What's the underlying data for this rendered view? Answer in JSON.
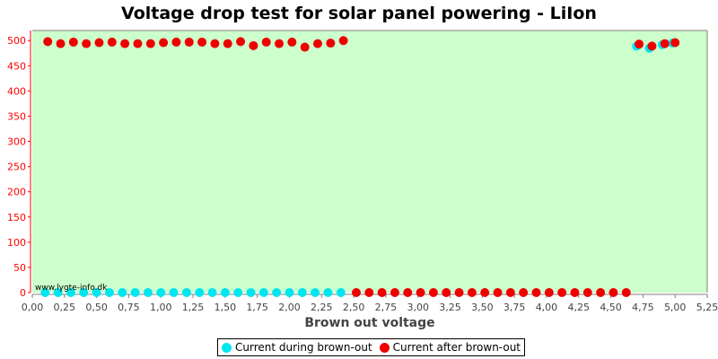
{
  "title": "Voltage drop test for solar panel powering -  LiIon",
  "watermark": "www.lygte-info.dk",
  "colors": {
    "plot_background": "#ccffcc",
    "axis": "#ff0000",
    "current_during": "#00e6f0",
    "current_after": "#ee0000"
  },
  "chart_data": {
    "type": "scatter",
    "title": "Voltage drop test for solar panel powering -  LiIon",
    "xlabel": "Brown out voltage",
    "ylabel": "",
    "xlim": [
      0,
      5.25
    ],
    "ylim": [
      0,
      520
    ],
    "x_ticks": [
      "0,00",
      "0,25",
      "0,50",
      "0,75",
      "1,00",
      "1,25",
      "1,50",
      "1,75",
      "2,00",
      "2,25",
      "2,50",
      "2,75",
      "3,00",
      "3,25",
      "3,50",
      "3,75",
      "4,00",
      "4,25",
      "4,50",
      "4,75",
      "5,00",
      "5,25"
    ],
    "y_ticks": [
      "0",
      "50",
      "100",
      "150",
      "200",
      "250",
      "300",
      "350",
      "400",
      "450",
      "500"
    ],
    "legend_position": "bottom-center",
    "grid": false,
    "series": [
      {
        "name": "Current during brown-out",
        "color": "#00e6f0",
        "points": [
          [
            0.1,
            0
          ],
          [
            0.2,
            0
          ],
          [
            0.3,
            0
          ],
          [
            0.4,
            0
          ],
          [
            0.5,
            0
          ],
          [
            0.6,
            0
          ],
          [
            0.7,
            0
          ],
          [
            0.8,
            0
          ],
          [
            0.9,
            0
          ],
          [
            1.0,
            0
          ],
          [
            1.1,
            0
          ],
          [
            1.2,
            0
          ],
          [
            1.3,
            0
          ],
          [
            1.4,
            0
          ],
          [
            1.5,
            0
          ],
          [
            1.6,
            0
          ],
          [
            1.7,
            0
          ],
          [
            1.8,
            0
          ],
          [
            1.9,
            0
          ],
          [
            2.0,
            0
          ],
          [
            2.1,
            0
          ],
          [
            2.2,
            0
          ],
          [
            2.3,
            0
          ],
          [
            2.4,
            0
          ],
          [
            4.7,
            489
          ],
          [
            4.8,
            485
          ],
          [
            4.9,
            492
          ],
          [
            4.98,
            495
          ]
        ]
      },
      {
        "name": "Current after brown-out",
        "color": "#ee0000",
        "points": [
          [
            0.12,
            498
          ],
          [
            0.22,
            494
          ],
          [
            0.32,
            497
          ],
          [
            0.42,
            494
          ],
          [
            0.52,
            496
          ],
          [
            0.62,
            497
          ],
          [
            0.72,
            494
          ],
          [
            0.82,
            494
          ],
          [
            0.92,
            494
          ],
          [
            1.02,
            496
          ],
          [
            1.12,
            497
          ],
          [
            1.22,
            497
          ],
          [
            1.32,
            497
          ],
          [
            1.42,
            494
          ],
          [
            1.52,
            494
          ],
          [
            1.62,
            498
          ],
          [
            1.72,
            490
          ],
          [
            1.82,
            497
          ],
          [
            1.92,
            494
          ],
          [
            2.02,
            497
          ],
          [
            2.12,
            487
          ],
          [
            2.22,
            494
          ],
          [
            2.32,
            495
          ],
          [
            2.42,
            500
          ],
          [
            2.52,
            0
          ],
          [
            2.62,
            0
          ],
          [
            2.72,
            0
          ],
          [
            2.82,
            0
          ],
          [
            2.92,
            0
          ],
          [
            3.02,
            0
          ],
          [
            3.12,
            0
          ],
          [
            3.22,
            0
          ],
          [
            3.32,
            0
          ],
          [
            3.42,
            0
          ],
          [
            3.52,
            0
          ],
          [
            3.62,
            0
          ],
          [
            3.72,
            0
          ],
          [
            3.82,
            0
          ],
          [
            3.92,
            0
          ],
          [
            4.02,
            0
          ],
          [
            4.12,
            0
          ],
          [
            4.22,
            0
          ],
          [
            4.32,
            0
          ],
          [
            4.42,
            0
          ],
          [
            4.52,
            0
          ],
          [
            4.62,
            0
          ],
          [
            4.72,
            493
          ],
          [
            4.82,
            489
          ],
          [
            4.92,
            494
          ],
          [
            5.0,
            496
          ]
        ]
      }
    ]
  }
}
